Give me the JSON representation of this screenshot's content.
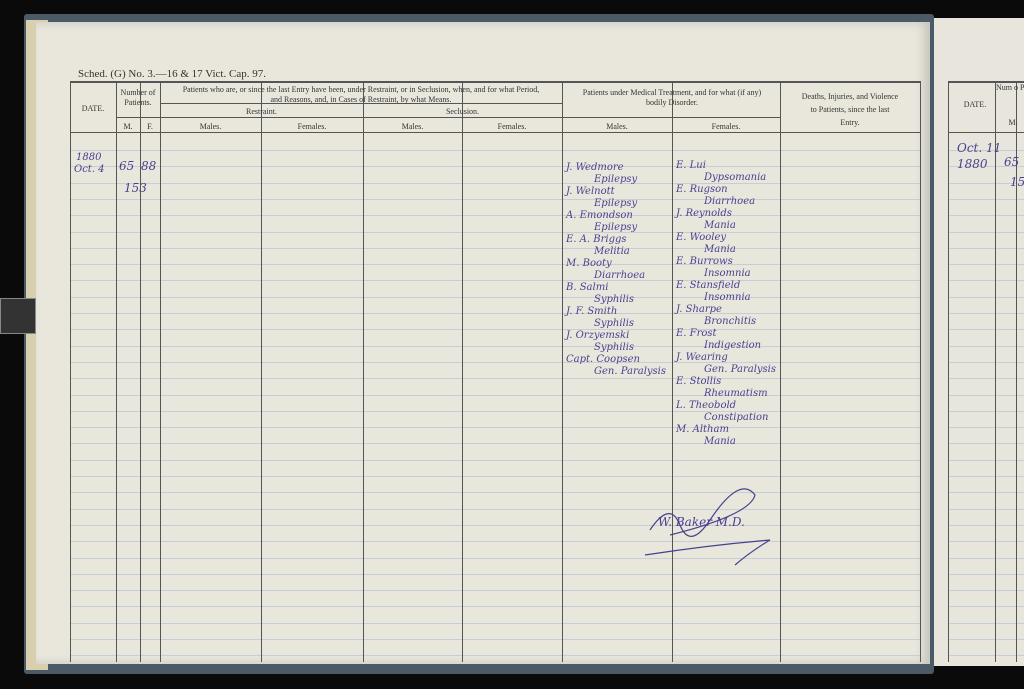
{
  "schedule_title": "Sched. (G) No. 3.—16 & 17 Vict. Cap. 97.",
  "headers": {
    "date": "DATE.",
    "number": "Number of Patients.",
    "m": "M.",
    "f": "F.",
    "restraint_group": "Patients who are, or since the last Entry have been, under Restraint, or in Seclusion, when, and for what Period, and Reasons, and, in Cases of Restraint, by what Means.",
    "restraint": "Restraint.",
    "seclusion": "Seclusion.",
    "males": "Males.",
    "females": "Females.",
    "medical": "Patients under Medical Treatment, and for what (if any) bodily Disorder.",
    "deaths": "Deaths, Injuries, and Violence to Patients, since the last Entry."
  },
  "entry": {
    "year": "1880",
    "date": "Oct. 4",
    "males": "65",
    "females": "88",
    "total": "153",
    "medical_males": [
      {
        "name": "J. Wedmore",
        "disorder": "Epilepsy"
      },
      {
        "name": "J. Welnott",
        "disorder": "Epilepsy"
      },
      {
        "name": "A. Emondson",
        "disorder": "Epilepsy"
      },
      {
        "name": "E. A. Briggs",
        "disorder": "Melitia"
      },
      {
        "name": "M. Booty",
        "disorder": "Diarrhoea"
      },
      {
        "name": "B. Salmi",
        "disorder": "Syphilis"
      },
      {
        "name": "J. F. Smith",
        "disorder": "Syphilis"
      },
      {
        "name": "J. Orzyemski",
        "disorder": "Syphilis"
      },
      {
        "name": "Capt. Coopsen",
        "disorder": "Gen. Paralysis"
      }
    ],
    "medical_females": [
      {
        "name": "E. Lui",
        "disorder": "Dypsomania"
      },
      {
        "name": "E. Rugson",
        "disorder": "Diarrhoea"
      },
      {
        "name": "J. Reynolds",
        "disorder": "Mania"
      },
      {
        "name": "E. Wooley",
        "disorder": "Mania"
      },
      {
        "name": "E. Burrows",
        "disorder": "Insomnia"
      },
      {
        "name": "E. Stansfield",
        "disorder": "Insomnia"
      },
      {
        "name": "J. Sharpe",
        "disorder": "Bronchitis"
      },
      {
        "name": "E. Frost",
        "disorder": "Indigestion"
      },
      {
        "name": "J. Wearing",
        "disorder": "Gen. Paralysis"
      },
      {
        "name": "E. Stollis",
        "disorder": "Rheumatism"
      },
      {
        "name": "L. Theobold",
        "disorder": "Constipation"
      },
      {
        "name": "M. Altham",
        "disorder": "Mania"
      }
    ],
    "signature": "W. Baker M.D."
  },
  "right_page": {
    "date_header": "DATE.",
    "number_header": "Num o Pati",
    "m": "M.",
    "date": "Oct. 11",
    "year": "1880",
    "males": "65",
    "total": "15"
  }
}
